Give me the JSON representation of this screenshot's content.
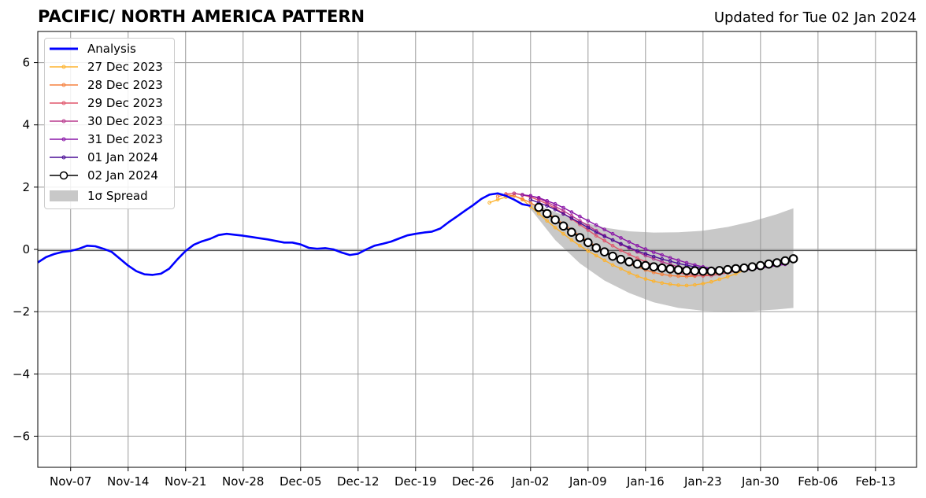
{
  "title": "PACIFIC/ NORTH AMERICA PATTERN",
  "subtitle": "Updated for Tue 02 Jan 2024",
  "colors": {
    "analysis": "#0000ff",
    "spread": "#c8c8c8",
    "grid": "#9a9a9a",
    "zero_line": "#555555"
  },
  "chart_data": {
    "type": "line",
    "title": "PACIFIC/ NORTH AMERICA PATTERN",
    "xlim": [
      "2023-11-03",
      "2024-02-18"
    ],
    "ylim": [
      -7,
      7
    ],
    "x_ticks": [
      "Nov-07",
      "Nov-14",
      "Nov-21",
      "Nov-28",
      "Dec-05",
      "Dec-12",
      "Dec-19",
      "Dec-26",
      "Jan-02",
      "Jan-09",
      "Jan-16",
      "Jan-23",
      "Jan-30",
      "Feb-06",
      "Feb-13"
    ],
    "x_tick_dates": [
      "2023-11-07",
      "2023-11-14",
      "2023-11-21",
      "2023-11-28",
      "2023-12-05",
      "2023-12-12",
      "2023-12-19",
      "2023-12-26",
      "2024-01-02",
      "2024-01-09",
      "2024-01-16",
      "2024-01-23",
      "2024-01-30",
      "2024-02-06",
      "2024-02-13"
    ],
    "y_ticks": [
      -6,
      -4,
      -2,
      0,
      2,
      4,
      6
    ],
    "y_tick_labels": [
      "−6",
      "−4",
      "−2",
      "0",
      "2",
      "4",
      "6"
    ],
    "grid": true,
    "legend_position": "top-left",
    "analysis": {
      "name": "Analysis",
      "color": "#0000ff",
      "x": [
        "2023-11-03",
        "2023-11-04",
        "2023-11-05",
        "2023-11-06",
        "2023-11-07",
        "2023-11-08",
        "2023-11-09",
        "2023-11-10",
        "2023-11-11",
        "2023-11-12",
        "2023-11-13",
        "2023-11-14",
        "2023-11-15",
        "2023-11-16",
        "2023-11-17",
        "2023-11-18",
        "2023-11-19",
        "2023-11-20",
        "2023-11-21",
        "2023-11-22",
        "2023-11-23",
        "2023-11-24",
        "2023-11-25",
        "2023-11-26",
        "2023-11-27",
        "2023-11-28",
        "2023-11-29",
        "2023-11-30",
        "2023-12-01",
        "2023-12-02",
        "2023-12-03",
        "2023-12-04",
        "2023-12-05",
        "2023-12-06",
        "2023-12-07",
        "2023-12-08",
        "2023-12-09",
        "2023-12-10",
        "2023-12-11",
        "2023-12-12",
        "2023-12-13",
        "2023-12-14",
        "2023-12-15",
        "2023-12-16",
        "2023-12-17",
        "2023-12-18",
        "2023-12-19",
        "2023-12-20",
        "2023-12-21",
        "2023-12-22",
        "2023-12-23",
        "2023-12-24",
        "2023-12-25",
        "2023-12-26",
        "2023-12-27",
        "2023-12-28",
        "2023-12-29",
        "2023-12-30",
        "2023-12-31",
        "2024-01-01",
        "2024-01-02"
      ],
      "values": [
        -0.42,
        -0.25,
        -0.15,
        -0.08,
        -0.05,
        0.02,
        0.12,
        0.1,
        0.02,
        -0.08,
        -0.3,
        -0.52,
        -0.7,
        -0.8,
        -0.82,
        -0.78,
        -0.62,
        -0.32,
        -0.05,
        0.15,
        0.26,
        0.34,
        0.46,
        0.5,
        0.47,
        0.44,
        0.4,
        0.36,
        0.32,
        0.27,
        0.22,
        0.22,
        0.16,
        0.05,
        0.02,
        0.04,
        0.0,
        -0.1,
        -0.18,
        -0.14,
        0.0,
        0.12,
        0.18,
        0.25,
        0.35,
        0.45,
        0.5,
        0.54,
        0.57,
        0.67,
        0.87,
        1.05,
        1.24,
        1.42,
        1.62,
        1.76,
        1.8,
        1.72,
        1.6,
        1.45,
        1.4
      ]
    },
    "series": [
      {
        "name": "27 Dec 2023",
        "color": "#fdb32e",
        "marker": "small-circle",
        "x": [
          "2023-12-28",
          "2023-12-29",
          "2023-12-30",
          "2023-12-31",
          "2024-01-01",
          "2024-01-02",
          "2024-01-03",
          "2024-01-04",
          "2024-01-05",
          "2024-01-06",
          "2024-01-07",
          "2024-01-08",
          "2024-01-09",
          "2024-01-10",
          "2024-01-11",
          "2024-01-12",
          "2024-01-13",
          "2024-01-14",
          "2024-01-15",
          "2024-01-16",
          "2024-01-17",
          "2024-01-18",
          "2024-01-19",
          "2024-01-20",
          "2024-01-21",
          "2024-01-22",
          "2024-01-23",
          "2024-01-24",
          "2024-01-25",
          "2024-01-26",
          "2024-01-27",
          "2024-01-28",
          "2024-01-29",
          "2024-01-30",
          "2024-01-31",
          "2024-02-01",
          "2024-02-02"
        ],
        "values": [
          1.5,
          1.6,
          1.68,
          1.72,
          1.6,
          1.38,
          1.15,
          0.92,
          0.7,
          0.5,
          0.3,
          0.12,
          -0.05,
          -0.2,
          -0.35,
          -0.5,
          -0.62,
          -0.75,
          -0.86,
          -0.95,
          -1.02,
          -1.08,
          -1.12,
          -1.15,
          -1.16,
          -1.14,
          -1.1,
          -1.04,
          -0.96,
          -0.88,
          -0.78,
          -0.68,
          -0.6,
          -0.52,
          -0.45,
          -0.38,
          -0.32
        ]
      },
      {
        "name": "28 Dec 2023",
        "color": "#f5813f",
        "marker": "small-circle",
        "x": [
          "2023-12-29",
          "2023-12-30",
          "2023-12-31",
          "2024-01-01",
          "2024-01-02",
          "2024-01-03",
          "2024-01-04",
          "2024-01-05",
          "2024-01-06",
          "2024-01-07",
          "2024-01-08",
          "2024-01-09",
          "2024-01-10",
          "2024-01-11",
          "2024-01-12",
          "2024-01-13",
          "2024-01-14",
          "2024-01-15",
          "2024-01-16",
          "2024-01-17",
          "2024-01-18",
          "2024-01-19",
          "2024-01-20",
          "2024-01-21",
          "2024-01-22",
          "2024-01-23",
          "2024-01-24",
          "2024-01-25",
          "2024-01-26",
          "2024-01-27",
          "2024-01-28",
          "2024-01-29",
          "2024-01-30",
          "2024-01-31",
          "2024-02-01",
          "2024-02-02"
        ],
        "values": [
          1.7,
          1.76,
          1.72,
          1.62,
          1.5,
          1.34,
          1.18,
          1.0,
          0.82,
          0.62,
          0.44,
          0.26,
          0.1,
          -0.06,
          -0.2,
          -0.34,
          -0.46,
          -0.56,
          -0.66,
          -0.74,
          -0.8,
          -0.84,
          -0.86,
          -0.87,
          -0.86,
          -0.83,
          -0.8,
          -0.75,
          -0.7,
          -0.64,
          -0.58,
          -0.53,
          -0.48,
          -0.43,
          -0.38,
          -0.33
        ]
      },
      {
        "name": "29 Dec 2023",
        "color": "#e0566c",
        "marker": "small-circle",
        "x": [
          "2023-12-30",
          "2023-12-31",
          "2024-01-01",
          "2024-01-02",
          "2024-01-03",
          "2024-01-04",
          "2024-01-05",
          "2024-01-06",
          "2024-01-07",
          "2024-01-08",
          "2024-01-09",
          "2024-01-10",
          "2024-01-11",
          "2024-01-12",
          "2024-01-13",
          "2024-01-14",
          "2024-01-15",
          "2024-01-16",
          "2024-01-17",
          "2024-01-18",
          "2024-01-19",
          "2024-01-20",
          "2024-01-21",
          "2024-01-22",
          "2024-01-23",
          "2024-01-24",
          "2024-01-25",
          "2024-01-26",
          "2024-01-27",
          "2024-01-28",
          "2024-01-29",
          "2024-01-30",
          "2024-01-31",
          "2024-02-01",
          "2024-02-02"
        ],
        "values": [
          1.78,
          1.8,
          1.75,
          1.68,
          1.58,
          1.46,
          1.32,
          1.16,
          0.98,
          0.8,
          0.62,
          0.44,
          0.28,
          0.12,
          -0.03,
          -0.16,
          -0.28,
          -0.4,
          -0.5,
          -0.6,
          -0.68,
          -0.75,
          -0.8,
          -0.84,
          -0.85,
          -0.84,
          -0.8,
          -0.75,
          -0.7,
          -0.64,
          -0.58,
          -0.52,
          -0.46,
          -0.4,
          -0.34
        ]
      },
      {
        "name": "30 Dec 2023",
        "color": "#b83a8e",
        "marker": "small-circle",
        "x": [
          "2023-12-31",
          "2024-01-01",
          "2024-01-02",
          "2024-01-03",
          "2024-01-04",
          "2024-01-05",
          "2024-01-06",
          "2024-01-07",
          "2024-01-08",
          "2024-01-09",
          "2024-01-10",
          "2024-01-11",
          "2024-01-12",
          "2024-01-13",
          "2024-01-14",
          "2024-01-15",
          "2024-01-16",
          "2024-01-17",
          "2024-01-18",
          "2024-01-19",
          "2024-01-20",
          "2024-01-21",
          "2024-01-22",
          "2024-01-23",
          "2024-01-24",
          "2024-01-25",
          "2024-01-26",
          "2024-01-27",
          "2024-01-28",
          "2024-01-29",
          "2024-01-30",
          "2024-01-31",
          "2024-02-01",
          "2024-02-02"
        ],
        "values": [
          1.8,
          1.76,
          1.72,
          1.64,
          1.52,
          1.38,
          1.24,
          1.08,
          0.92,
          0.76,
          0.6,
          0.44,
          0.3,
          0.16,
          0.04,
          -0.08,
          -0.2,
          -0.3,
          -0.4,
          -0.48,
          -0.56,
          -0.62,
          -0.67,
          -0.7,
          -0.72,
          -0.72,
          -0.7,
          -0.67,
          -0.63,
          -0.58,
          -0.53,
          -0.48,
          -0.43,
          -0.38
        ]
      },
      {
        "name": "31 Dec 2023",
        "color": "#8a17a8",
        "marker": "small-circle",
        "x": [
          "2024-01-01",
          "2024-01-02",
          "2024-01-03",
          "2024-01-04",
          "2024-01-05",
          "2024-01-06",
          "2024-01-07",
          "2024-01-08",
          "2024-01-09",
          "2024-01-10",
          "2024-01-11",
          "2024-01-12",
          "2024-01-13",
          "2024-01-14",
          "2024-01-15",
          "2024-01-16",
          "2024-01-17",
          "2024-01-18",
          "2024-01-19",
          "2024-01-20",
          "2024-01-21",
          "2024-01-22",
          "2024-01-23",
          "2024-01-24",
          "2024-01-25",
          "2024-01-26",
          "2024-01-27",
          "2024-01-28",
          "2024-01-29",
          "2024-01-30",
          "2024-01-31",
          "2024-02-01",
          "2024-02-02"
        ],
        "values": [
          1.75,
          1.72,
          1.66,
          1.56,
          1.46,
          1.34,
          1.2,
          1.06,
          0.92,
          0.78,
          0.64,
          0.5,
          0.37,
          0.24,
          0.12,
          0.01,
          -0.09,
          -0.18,
          -0.27,
          -0.35,
          -0.43,
          -0.5,
          -0.56,
          -0.61,
          -0.65,
          -0.67,
          -0.68,
          -0.67,
          -0.64,
          -0.6,
          -0.56,
          -0.52,
          -0.48
        ]
      },
      {
        "name": "01 Jan 2024",
        "color": "#4a0d96",
        "marker": "small-circle",
        "x": [
          "2024-01-02",
          "2024-01-03",
          "2024-01-04",
          "2024-01-05",
          "2024-01-06",
          "2024-01-07",
          "2024-01-08",
          "2024-01-09",
          "2024-01-10",
          "2024-01-11",
          "2024-01-12",
          "2024-01-13",
          "2024-01-14",
          "2024-01-15",
          "2024-01-16",
          "2024-01-17",
          "2024-01-18",
          "2024-01-19",
          "2024-01-20",
          "2024-01-21",
          "2024-01-22",
          "2024-01-23",
          "2024-01-24",
          "2024-01-25",
          "2024-01-26",
          "2024-01-27",
          "2024-01-28",
          "2024-01-29",
          "2024-01-30",
          "2024-01-31",
          "2024-02-01",
          "2024-02-02"
        ],
        "values": [
          1.6,
          1.5,
          1.4,
          1.28,
          1.14,
          1.0,
          0.85,
          0.7,
          0.55,
          0.42,
          0.3,
          0.18,
          0.06,
          -0.05,
          -0.14,
          -0.23,
          -0.31,
          -0.38,
          -0.45,
          -0.51,
          -0.56,
          -0.6,
          -0.63,
          -0.64,
          -0.64,
          -0.62,
          -0.6,
          -0.58,
          -0.55,
          -0.52,
          -0.48,
          -0.44
        ]
      },
      {
        "name": "02 Jan 2024",
        "color": "#000000",
        "marker": "large-open-circle",
        "x": [
          "2024-01-03",
          "2024-01-04",
          "2024-01-05",
          "2024-01-06",
          "2024-01-07",
          "2024-01-08",
          "2024-01-09",
          "2024-01-10",
          "2024-01-11",
          "2024-01-12",
          "2024-01-13",
          "2024-01-14",
          "2024-01-15",
          "2024-01-16",
          "2024-01-17",
          "2024-01-18",
          "2024-01-19",
          "2024-01-20",
          "2024-01-21",
          "2024-01-22",
          "2024-01-23",
          "2024-01-24",
          "2024-01-25",
          "2024-01-26",
          "2024-01-27",
          "2024-01-28",
          "2024-01-29",
          "2024-01-30",
          "2024-01-31",
          "2024-02-01",
          "2024-02-02",
          "2024-02-03"
        ],
        "values": [
          1.35,
          1.15,
          0.95,
          0.75,
          0.55,
          0.38,
          0.22,
          0.05,
          -0.08,
          -0.22,
          -0.32,
          -0.4,
          -0.47,
          -0.52,
          -0.56,
          -0.6,
          -0.63,
          -0.66,
          -0.68,
          -0.69,
          -0.7,
          -0.7,
          -0.68,
          -0.65,
          -0.62,
          -0.6,
          -0.56,
          -0.52,
          -0.47,
          -0.43,
          -0.37,
          -0.3
        ]
      }
    ],
    "spread": {
      "name": "1σ Spread",
      "color": "#c8c8c8",
      "x": [
        "2024-01-02",
        "2024-01-05",
        "2024-01-08",
        "2024-01-11",
        "2024-01-14",
        "2024-01-17",
        "2024-01-20",
        "2024-01-23",
        "2024-01-26",
        "2024-01-29",
        "2024-02-01",
        "2024-02-03"
      ],
      "upper": [
        1.5,
        1.2,
        0.9,
        0.7,
        0.58,
        0.54,
        0.55,
        0.6,
        0.72,
        0.9,
        1.13,
        1.32
      ],
      "lower": [
        1.3,
        0.3,
        -0.45,
        -1.0,
        -1.4,
        -1.7,
        -1.88,
        -1.97,
        -2.0,
        -1.98,
        -1.93,
        -1.88
      ]
    }
  }
}
